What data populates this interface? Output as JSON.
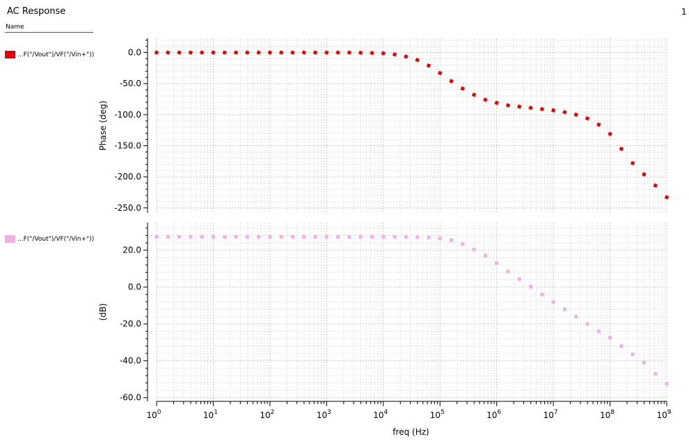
{
  "window": {
    "title": "AC Response",
    "page_number": "1"
  },
  "legend_panel": {
    "header": "Name",
    "entries": [
      {
        "label": "...F(\"/Vout\")/VF(\"/Vin+\"))",
        "color": "#e80000"
      },
      {
        "label": "...F(\"/Vout\")/VF(\"/Vin+\"))",
        "color": "#f0b0e0"
      }
    ]
  },
  "chart_data": {
    "type": "line",
    "xlabel": "freq (Hz)",
    "xscale": "log",
    "xlim": [
      1,
      1000000000
    ],
    "x_tick_labels": [
      {
        "base": "10",
        "exp": "0"
      },
      {
        "base": "10",
        "exp": "1"
      },
      {
        "base": "10",
        "exp": "2"
      },
      {
        "base": "10",
        "exp": "3"
      },
      {
        "base": "10",
        "exp": "4"
      },
      {
        "base": "10",
        "exp": "5"
      },
      {
        "base": "10",
        "exp": "6"
      },
      {
        "base": "10",
        "exp": "7"
      },
      {
        "base": "10",
        "exp": "8"
      },
      {
        "base": "10",
        "exp": "9"
      }
    ],
    "grid": true,
    "x": [
      1,
      1.585,
      2.512,
      3.981,
      6.31,
      10,
      15.85,
      25.12,
      39.81,
      63.1,
      100,
      158.5,
      251.2,
      398.1,
      631,
      1000,
      1585,
      2512,
      3981,
      6310,
      10000,
      15850,
      25120,
      39810,
      63100,
      100000,
      158500,
      251200,
      398100,
      631000,
      1000000,
      1585000,
      2512000,
      3981000,
      6310000,
      10000000,
      15850000,
      25120000,
      39810000,
      63100000,
      100000000,
      158500000,
      251200000,
      398100000,
      631000000,
      1000000000
    ],
    "panels": [
      {
        "ylabel": "Phase (deg)",
        "ylim": [
          -258,
          23
        ],
        "yticks": [
          "0.0",
          "-50.0",
          "-100.0",
          "-150.0",
          "-200.0",
          "-250.0"
        ],
        "series": [
          {
            "name": "...F(\"/Vout\")/VF(\"/Vin+\"))",
            "color": "#e80000",
            "values": [
              0,
              0,
              0,
              0,
              0,
              0,
              0,
              0,
              0,
              0,
              0,
              0,
              0,
              0,
              0,
              0,
              0,
              0,
              -0.3,
              -0.7,
              -1.2,
              -3,
              -6.5,
              -12,
              -21,
              -33,
              -46,
              -58,
              -68,
              -76,
              -81,
              -85,
              -87,
              -89,
              -91,
              -93,
              -96,
              -100,
              -106,
              -116,
              -131,
              -155,
              -178,
              -196,
              -214,
              -233
            ]
          }
        ]
      },
      {
        "ylabel": "(dB)",
        "ylim": [
          -62,
          35
        ],
        "yticks": [
          "20.0",
          "0.0",
          "-20.0",
          "-40.0",
          "-60.0"
        ],
        "series": [
          {
            "name": "...F(\"/Vout\")/VF(\"/Vin+\"))",
            "color": "#f0b0e0",
            "values": [
              27.3,
              27.3,
              27.3,
              27.3,
              27.3,
              27.3,
              27.3,
              27.3,
              27.3,
              27.3,
              27.3,
              27.3,
              27.3,
              27.3,
              27.3,
              27.3,
              27.3,
              27.3,
              27.3,
              27.3,
              27.3,
              27.3,
              27.2,
              27.1,
              26.9,
              26.4,
              25.4,
              23.4,
              20.4,
              17.1,
              13,
              8.5,
              4.4,
              0.2,
              -4,
              -8,
              -12,
              -16,
              -20,
              -24,
              -27.5,
              -32,
              -36.5,
              -41,
              -47,
              -52.5
            ]
          }
        ]
      }
    ]
  }
}
